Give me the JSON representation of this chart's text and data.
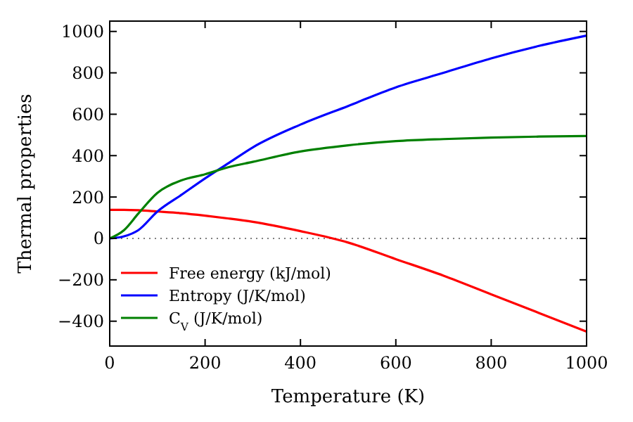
{
  "chart_data": {
    "type": "line",
    "xlabel": "Temperature (K)",
    "ylabel": "Thermal properties",
    "xlim": [
      0,
      1000
    ],
    "ylim": [
      -520,
      1050
    ],
    "xticks": [
      0,
      200,
      400,
      600,
      800,
      1000
    ],
    "yticks": [
      {
        "value": -400,
        "label": "−400"
      },
      {
        "value": -200,
        "label": "−200"
      },
      0,
      200,
      400,
      600,
      800,
      1000
    ],
    "x": [
      0,
      30,
      60,
      100,
      150,
      200,
      250,
      300,
      400,
      500,
      600,
      700,
      800,
      900,
      1000
    ],
    "series": [
      {
        "name": "Free energy (kJ/mol)",
        "color": "#ff0000",
        "values": [
          138,
          138,
          136,
          130,
          122,
          110,
          96,
          80,
          35,
          -20,
          -100,
          -180,
          -270,
          -360,
          -450
        ]
      },
      {
        "name": "Entropy (J/K/mol)",
        "color": "#0000ff",
        "values": [
          0,
          10,
          40,
          130,
          210,
          290,
          365,
          440,
          550,
          640,
          730,
          800,
          870,
          930,
          980
        ]
      },
      {
        "name": "C$_{V}$ (J/K/mol)",
        "color": "#008000",
        "values": [
          0,
          40,
          120,
          220,
          280,
          310,
          345,
          370,
          420,
          450,
          470,
          480,
          487,
          492,
          495
        ]
      }
    ],
    "ref_lines": [
      {
        "axis": "y",
        "value": 0,
        "color": "#000000",
        "line_style": "dotted"
      }
    ],
    "legend": "lower left",
    "line_style": "solid",
    "grid": false
  }
}
